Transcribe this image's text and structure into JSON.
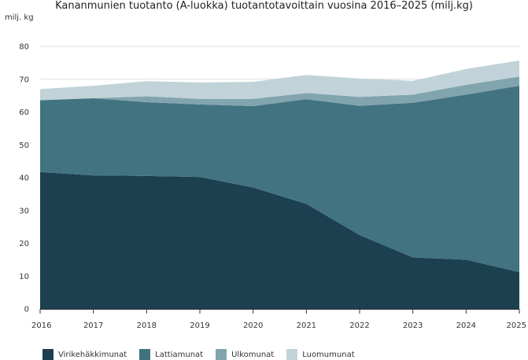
{
  "chart_data": {
    "type": "area",
    "stacked": true,
    "title": "Kananmunien tuotanto (A-luokka) tuotantotavoittain vuosina 2016–2025 (milj.kg)",
    "ylabel": "milj. kg",
    "xlabel": "",
    "x": [
      "2016",
      "2017",
      "2018",
      "2019",
      "2020",
      "2021",
      "2022",
      "2023",
      "2024",
      "2025"
    ],
    "ylim": [
      0,
      80
    ],
    "yticks": [
      0,
      10,
      20,
      30,
      40,
      50,
      60,
      70,
      80
    ],
    "grid": true,
    "legend_position": "bottom",
    "series": [
      {
        "name": "Virikehäkkimunat",
        "color": "#1c4050",
        "values": [
          41.7,
          40.7,
          40.5,
          40.2,
          37.0,
          32.0,
          22.5,
          15.7,
          15.0,
          11.2
        ]
      },
      {
        "name": "Lattiamunat",
        "color": "#427380",
        "values": [
          21.9,
          23.5,
          22.5,
          22.1,
          24.8,
          31.9,
          39.4,
          47.1,
          50.3,
          56.8
        ]
      },
      {
        "name": "Ulkomunat",
        "color": "#82a4ae",
        "values": [
          0.0,
          0.0,
          1.8,
          1.7,
          2.2,
          1.9,
          2.7,
          2.5,
          3.0,
          2.8
        ]
      },
      {
        "name": "Luomumunat",
        "color": "#c1d3d9",
        "values": [
          3.4,
          3.8,
          4.6,
          5.0,
          5.2,
          5.5,
          5.6,
          4.2,
          4.8,
          4.9
        ]
      }
    ]
  }
}
